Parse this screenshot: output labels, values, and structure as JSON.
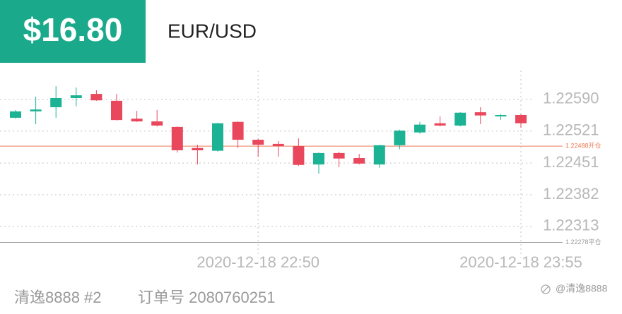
{
  "header": {
    "price": "$16.80",
    "symbol": "EUR/USD"
  },
  "chart_data": {
    "type": "candlestick",
    "categories": [
      null,
      null,
      null,
      null,
      null,
      null,
      null,
      null,
      null,
      null,
      null,
      null,
      "2020-12-18 22:50",
      null,
      null,
      null,
      null,
      null,
      null,
      null,
      null,
      null,
      null,
      null,
      null,
      "2020-12-18 23:55"
    ],
    "open": [
      1.2255,
      1.22564,
      1.22573,
      1.22593,
      1.22602,
      1.22587,
      1.22548,
      1.22542,
      1.2253,
      1.22484,
      1.22478,
      1.22541,
      1.22502,
      1.22493,
      1.22488,
      1.22448,
      1.22473,
      1.22462,
      1.22448,
      1.2249,
      1.22518,
      1.22538,
      1.22533,
      1.22562,
      1.22553,
      1.22556
    ],
    "high": [
      1.22567,
      1.22596,
      1.22619,
      1.22616,
      1.2261,
      1.22602,
      1.22565,
      1.22567,
      1.22531,
      1.22491,
      1.22539,
      1.22542,
      1.22504,
      1.22499,
      1.22505,
      1.22474,
      1.22476,
      1.22471,
      1.22491,
      1.22524,
      1.22541,
      1.22553,
      1.22562,
      1.22573,
      1.22558,
      1.22558
    ],
    "low": [
      1.22548,
      1.22536,
      1.2255,
      1.22575,
      1.22587,
      1.22544,
      1.22541,
      1.22531,
      1.22474,
      1.22448,
      1.22476,
      1.22484,
      1.22465,
      1.22465,
      1.22445,
      1.22428,
      1.22442,
      1.22448,
      1.22441,
      1.22481,
      1.22515,
      1.22531,
      1.22531,
      1.22536,
      1.22545,
      1.22528
    ],
    "close": [
      1.22564,
      1.22568,
      1.22593,
      1.22599,
      1.22588,
      1.22545,
      1.22542,
      1.22533,
      1.22479,
      1.22479,
      1.22538,
      1.22502,
      1.22491,
      1.22488,
      1.22447,
      1.22473,
      1.22461,
      1.2245,
      1.2249,
      1.22522,
      1.22535,
      1.22533,
      1.22561,
      1.22555,
      1.22556,
      1.22538
    ],
    "up_color": "#1bb394",
    "down_color": "#e8475c",
    "ylim": [
      1.22268,
      1.22653
    ],
    "yticks": [
      {
        "value": 1.2259,
        "label": "1.22590"
      },
      1.22521,
      1.22451,
      1.22382,
      1.22313
    ],
    "grid": true,
    "reference_lines": [
      {
        "value": 1.22488,
        "label": "1.22488开仓",
        "color": "#ec7a55"
      },
      {
        "value": 1.22278,
        "label": "1.22278平仓",
        "color": "#9a9a9a"
      }
    ]
  },
  "footer": {
    "account": "清逸8888 #2",
    "order": "订单号 2080760251",
    "watermark": "@清逸8888"
  }
}
